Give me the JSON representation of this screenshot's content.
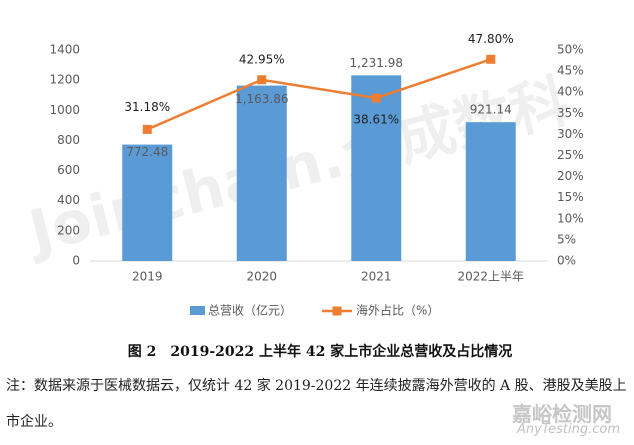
{
  "chart_data": {
    "type": "bar_line",
    "categories": [
      "2019",
      "2020",
      "2021",
      "2022上半年"
    ],
    "series": [
      {
        "name": "总营收（亿元）",
        "color": "#5b9bd5",
        "values": [
          772.48,
          1163.86,
          1231.98,
          921.14
        ],
        "value_labels": [
          "772.48",
          "1,163.86",
          "1,231.98",
          "921.14"
        ]
      },
      {
        "name": "海外占比（%）",
        "color": "#ed7d31",
        "axis": "y2",
        "values": [
          31.18,
          42.95,
          38.61,
          47.8
        ],
        "value_labels": [
          "31.18%",
          "42.95%",
          "38.61%",
          "47.80%"
        ]
      }
    ],
    "ylim": [
      0,
      1400
    ],
    "yticks": [
      0,
      200,
      400,
      600,
      800,
      1000,
      1200,
      1400
    ],
    "y2lim": [
      0,
      50
    ],
    "y2ticks": [
      {
        "value": 0,
        "label": "0%"
      },
      {
        "value": 5,
        "label": "5%"
      },
      {
        "value": 10,
        "label": "10%"
      },
      {
        "value": 15,
        "label": "15%"
      },
      {
        "value": 20,
        "label": "20%"
      },
      {
        "value": 25,
        "label": "25%"
      },
      {
        "value": 30,
        "label": "30%"
      },
      {
        "value": 35,
        "label": "35%"
      },
      {
        "value": 40,
        "label": "40%"
      },
      {
        "value": 45,
        "label": "45%"
      },
      {
        "value": 50,
        "label": "50%"
      }
    ],
    "legend": "bottom",
    "caption": "图 2　2019-2022 上半年 42 家上市企业总营收及占比情况",
    "note": "注：数据来源于医械数据云，仅统计 42 家 2019-2022 年连续披露海外营收的 A 股、港股及美股上市企业。",
    "watermarks": [
      "Joinchain.众成数科",
      "嘉峪检测网",
      "AnyTesting.com"
    ]
  }
}
